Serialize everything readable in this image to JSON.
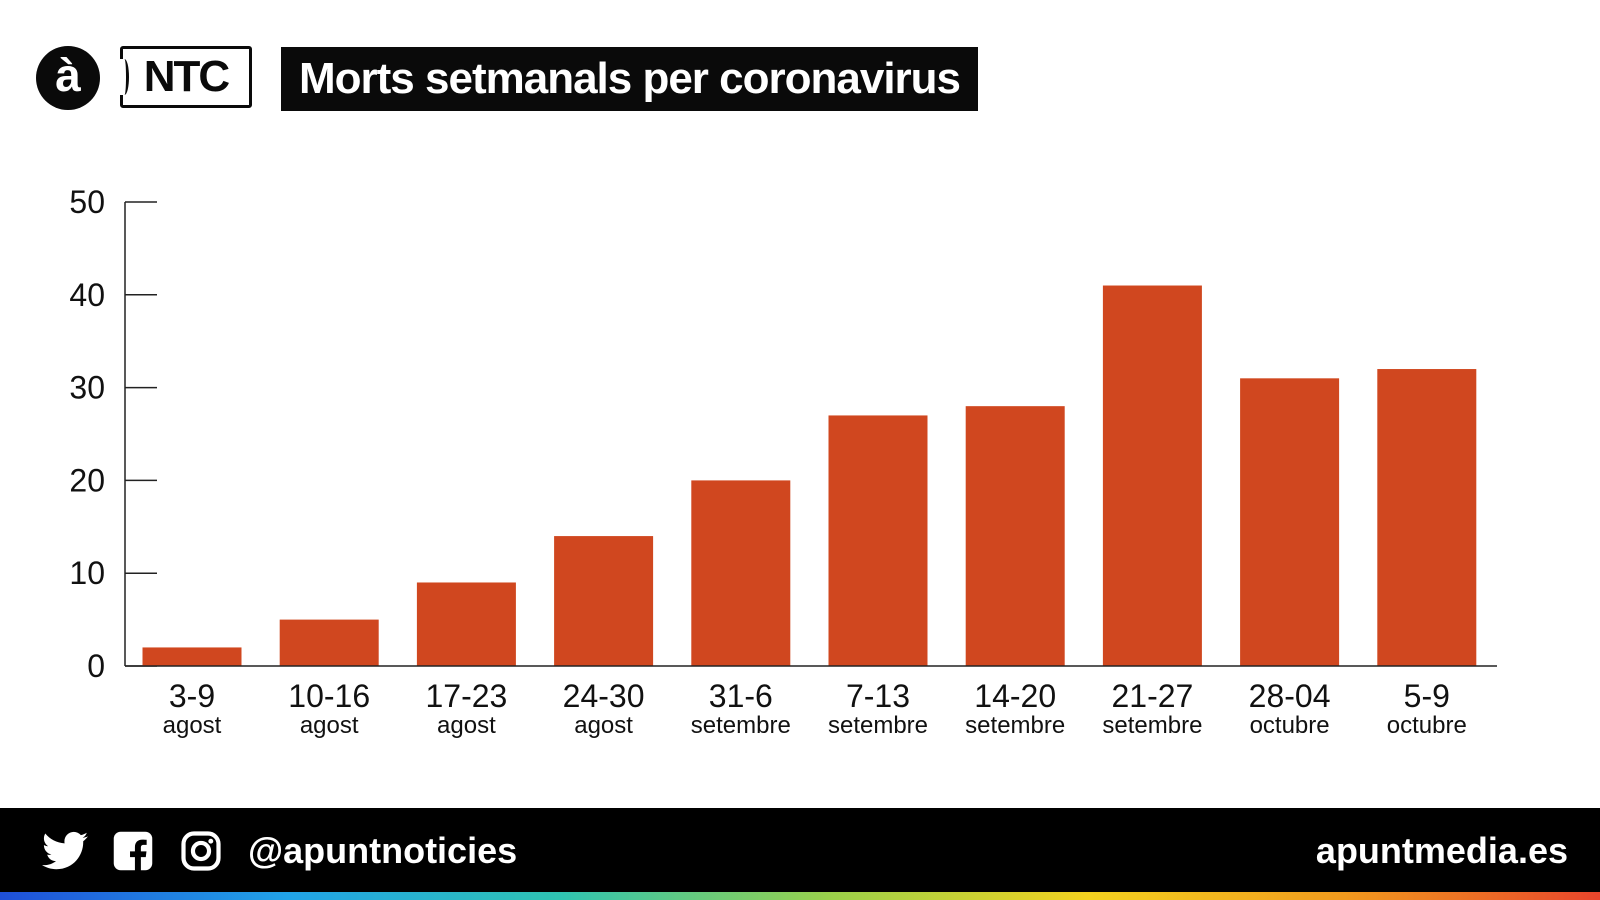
{
  "header": {
    "logo_letter": "à",
    "logo_ntc": "NTC",
    "title": "Morts setmanals per coronavirus"
  },
  "colors": {
    "bar": "#D0471F",
    "axis": "#222222",
    "header_bg": "#0a0a0a",
    "footer_bg": "#000000"
  },
  "chart_data": {
    "type": "bar",
    "title": "Morts setmanals per coronavirus",
    "categories": [
      "3-9",
      "10-16",
      "17-23",
      "24-30",
      "31-6",
      "7-13",
      "14-20",
      "21-27",
      "28-04",
      "5-9"
    ],
    "category_sublabels": [
      "agost",
      "agost",
      "agost",
      "agost",
      "setembre",
      "setembre",
      "setembre",
      "setembre",
      "octubre",
      "octubre"
    ],
    "values": [
      2,
      5,
      9,
      14,
      20,
      27,
      28,
      41,
      31,
      32
    ],
    "yticks": [
      0,
      10,
      20,
      30,
      40,
      50
    ],
    "ylim": [
      0,
      50
    ],
    "xlabel": "",
    "ylabel": "",
    "grid": false,
    "legend": "none"
  },
  "footer": {
    "icons": [
      "twitter-icon",
      "facebook-icon",
      "instagram-icon"
    ],
    "handle": "@apuntnoticies",
    "website": "apuntmedia.es"
  }
}
